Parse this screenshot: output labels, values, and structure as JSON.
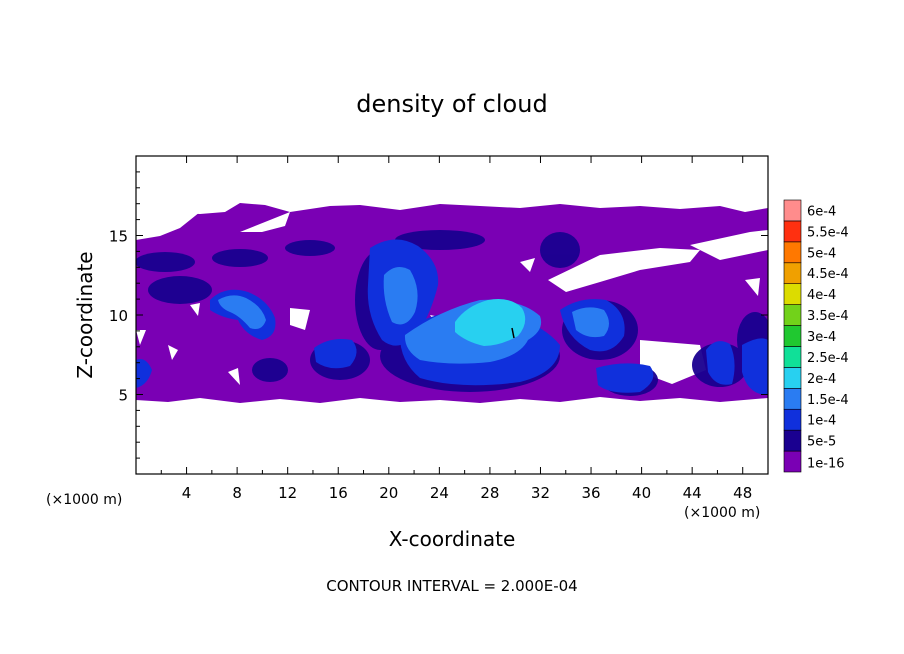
{
  "chart_data": {
    "type": "heatmap",
    "title": "density of cloud",
    "xlabel": "X-coordinate",
    "ylabel": "Z-coordinate",
    "x_unit_left": "(×1000 m)",
    "x_unit_right": "(×1000 m)",
    "footer": "CONTOUR INTERVAL = 2.000E-04",
    "xlim": [
      0,
      50
    ],
    "ylim": [
      0,
      20
    ],
    "x_ticks": [
      4,
      8,
      12,
      16,
      20,
      24,
      28,
      32,
      36,
      40,
      44,
      48
    ],
    "y_ticks": [
      5,
      10,
      15
    ],
    "colorbar": {
      "levels": [
        "1e-16",
        "5e-5",
        "1e-4",
        "1.5e-4",
        "2e-4",
        "2.5e-4",
        "3e-4",
        "3.5e-4",
        "4e-4",
        "4.5e-4",
        "5e-4",
        "5.5e-4",
        "6e-4"
      ],
      "colors": [
        "#7a00b4",
        "#1a0090",
        "#1030dc",
        "#2a7cf2",
        "#28d0f0",
        "#10e098",
        "#20c830",
        "#72d21a",
        "#dcdc00",
        "#f0a000",
        "#ff7800",
        "#ff3010",
        "#ff8c8c"
      ]
    },
    "cloud_layer_z": [
      4.6,
      16.6
    ],
    "cores": [
      {
        "x": 29,
        "z": 8.9,
        "level": "2e-4"
      },
      {
        "x": 20,
        "z": 9.5,
        "level": "1.5e-4"
      },
      {
        "x": 8.5,
        "z": 10.5,
        "level": "1.5e-4"
      },
      {
        "x": 36.5,
        "z": 9.5,
        "level": "1.5e-4"
      },
      {
        "x": 46.5,
        "z": 7.2,
        "level": "1e-4"
      },
      {
        "x": 14.5,
        "z": 7.5,
        "level": "1e-4"
      }
    ]
  }
}
